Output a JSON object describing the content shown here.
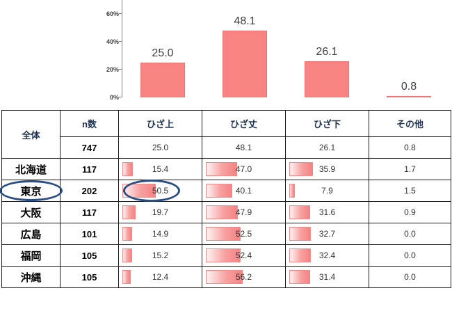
{
  "chart_data": {
    "type": "bar",
    "title": "",
    "categories": [
      "ひざ上",
      "ひざ丈",
      "ひざ下",
      "その他"
    ],
    "values": [
      25.0,
      48.1,
      26.1,
      0.8
    ],
    "value_labels": [
      "25.0",
      "48.1",
      "26.1",
      "0.8"
    ],
    "y_ticks": [
      "0%",
      "20%",
      "40%",
      "60%"
    ],
    "ylim": [
      0,
      65
    ],
    "grid": false,
    "legend": "none",
    "bar_color": "#f88383"
  },
  "table": {
    "header": {
      "group_label": "全体",
      "n_label": "n数",
      "columns": [
        "ひざ上",
        "ひざ丈",
        "ひざ下",
        "その他"
      ]
    },
    "total_row": {
      "n": "747",
      "values": [
        "25.0",
        "48.1",
        "26.1",
        "0.8"
      ]
    },
    "rows": [
      {
        "region": "北海道",
        "n": "117",
        "values": [
          "15.4",
          "47.0",
          "35.9",
          "1.7"
        ],
        "highlighted": false
      },
      {
        "region": "東京",
        "n": "202",
        "values": [
          "50.5",
          "40.1",
          "7.9",
          "1.5"
        ],
        "highlighted": true
      },
      {
        "region": "大阪",
        "n": "117",
        "values": [
          "19.7",
          "47.9",
          "31.6",
          "0.9"
        ],
        "highlighted": false
      },
      {
        "region": "広島",
        "n": "101",
        "values": [
          "14.9",
          "52.5",
          "32.7",
          "0.0"
        ],
        "highlighted": false
      },
      {
        "region": "福岡",
        "n": "105",
        "values": [
          "15.2",
          "52.4",
          "32.4",
          "0.0"
        ],
        "highlighted": false
      },
      {
        "region": "沖縄",
        "n": "105",
        "values": [
          "12.4",
          "56.2",
          "31.4",
          "0.0"
        ],
        "highlighted": false
      }
    ]
  },
  "colors": {
    "bar_fill": "#f88383",
    "bar_border": "#ef7272",
    "cell_bar_edge": "#ee8b8b",
    "highlight_ellipse": "#2b4d86",
    "header_text": "#1f3350"
  }
}
